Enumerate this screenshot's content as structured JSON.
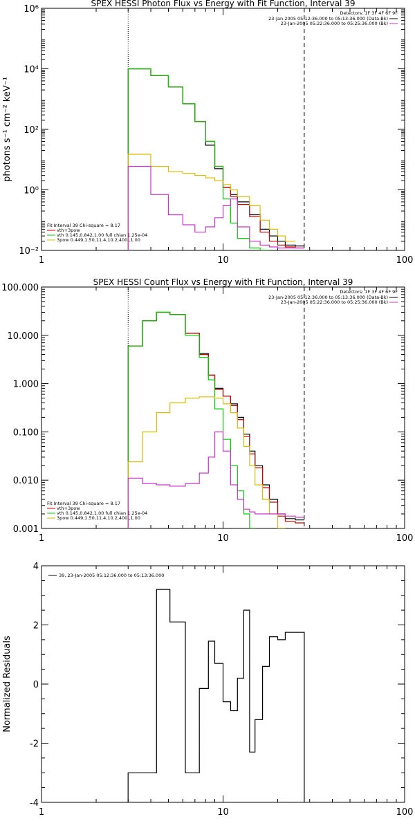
{
  "colors": {
    "data": "#000000",
    "background": "#cc33cc",
    "total": "#cc0000",
    "vth": "#00cc00",
    "bpow": "#ddbb00"
  },
  "chart_data": [
    {
      "type": "line",
      "step": true,
      "title": "SPEX HESSI Photon Flux vs Energy with Fit Function, Interval 39",
      "xlabel": "",
      "ylabel": "photons s⁻¹ cm⁻² keV⁻¹",
      "xscale": "log",
      "yscale": "log",
      "xlim": [
        1,
        100
      ],
      "ylim": [
        0.01,
        1000000
      ],
      "xticks": [
        1,
        10,
        100
      ],
      "xtick_labels": [
        "1",
        "10",
        "100"
      ],
      "yticks": [
        0.01,
        1,
        100,
        10000,
        1000000
      ],
      "ytick_labels": [
        "10⁻²",
        "10⁰",
        "10²",
        "10⁴",
        "10⁶"
      ],
      "vlines": [
        {
          "x": 3,
          "style": "dotted"
        },
        {
          "x": 28,
          "style": "dashed"
        }
      ],
      "header": {
        "detectors": "Detectors: 1F 3F 4F 6F 9F",
        "entries": [
          {
            "text": "23-Jan-2005 05:12:36.000 to 05:13:36.000 (Data-Bk)",
            "color": "#000000"
          },
          {
            "text": "23-Jan-2005 05:22:36.000 to 05:25:36.000 (Bk)",
            "color": "#cc33cc"
          }
        ]
      },
      "fit_legend": {
        "heading": "Fit Interval 39   Chi-square = 8.17",
        "entries": [
          {
            "text": "vth+3pow",
            "color": "#cc0000"
          },
          {
            "text": "vth 0.145,0.842,1.00  full chian 1.25e-04",
            "color": "#00cc00"
          },
          {
            "text": "3pow 0.449,1.50,11.4,10.2,400.,1.00",
            "color": "#ddbb00"
          }
        ]
      },
      "edges": [
        3.0,
        4.0,
        5.0,
        6.0,
        7.0,
        8.0,
        9.0,
        10.0,
        11.0,
        12.0,
        14.0,
        16.0,
        18.0,
        20.0,
        22.0,
        25.0,
        28.0
      ],
      "series": [
        {
          "color": "#000000",
          "values": [
            10000,
            6000,
            2500,
            700,
            180,
            30,
            5,
            1.2,
            0.7,
            0.4,
            0.15,
            0.05,
            0.03,
            0.02,
            0.015,
            0.014
          ]
        },
        {
          "color": "#cc0000",
          "values": [
            10000,
            6000,
            2500,
            700,
            180,
            40,
            6,
            1.2,
            0.6,
            0.33,
            0.13,
            0.04,
            0.02,
            0.015,
            0.013,
            0.012
          ]
        },
        {
          "color": "#00cc00",
          "values": [
            10000,
            6000,
            2500,
            700,
            180,
            40,
            6,
            0.5,
            0.08,
            0.025,
            0.012,
            0.01
          ]
        },
        {
          "color": "#ddbb00",
          "values": [
            15,
            6,
            4,
            3.5,
            3,
            2.5,
            2,
            1.5,
            1.0,
            0.6,
            0.3,
            0.1,
            0.05,
            0.03,
            0.02
          ]
        },
        {
          "color": "#cc33cc",
          "values": [
            6,
            0.7,
            0.15,
            0.07,
            0.04,
            0.06,
            0.12,
            0.3,
            0.5,
            0.06,
            0.02,
            0.015,
            0.013,
            0.012,
            0.012,
            0.012
          ]
        }
      ]
    },
    {
      "type": "line",
      "step": true,
      "title": "SPEX HESSI Count Flux vs Energy with Fit Function, Interval 39",
      "xlabel": "",
      "ylabel": "",
      "xscale": "log",
      "yscale": "log",
      "xlim": [
        1,
        100
      ],
      "ylim": [
        0.001,
        100
      ],
      "xticks": [
        1,
        10,
        100
      ],
      "xtick_labels": [
        "1",
        "10",
        "100"
      ],
      "yticks": [
        0.001,
        0.01,
        0.1,
        1,
        10,
        100
      ],
      "ytick_labels": [
        "0.001",
        "0.010",
        "0.100",
        "1.000",
        "10.000",
        "100.000"
      ],
      "vlines": [
        {
          "x": 3,
          "style": "dotted"
        },
        {
          "x": 28,
          "style": "dashed"
        }
      ],
      "header": {
        "detectors": "Detectors: 1F 3F 4F 6F 9F",
        "entries": [
          {
            "text": "23-Jan-2005 05:12:36.000 to 05:13:36.000 (Data-Bk)",
            "color": "#000000"
          },
          {
            "text": "23-Jan-2005 05:22:36.000 to 05:25:36.000 (Bk)",
            "color": "#cc33cc"
          }
        ]
      },
      "fit_legend": {
        "heading": "Fit Interval 39   Chi-square = 8.17",
        "entries": [
          {
            "text": "vth+3pow",
            "color": "#cc0000"
          },
          {
            "text": "vth 0.145,0.842,1.00  full chian 1.25e-04",
            "color": "#00cc00"
          },
          {
            "text": "3pow 0.449,1.50,11.4,10.2,400.,1.00",
            "color": "#ddbb00"
          }
        ]
      },
      "edges": [
        3.0,
        3.6,
        4.3,
        5.1,
        6.2,
        7.4,
        8.3,
        9.0,
        10.0,
        11.0,
        12.0,
        13.0,
        14.0,
        15.0,
        16.5,
        18.0,
        20.0,
        22.0,
        25.0,
        28.0
      ],
      "series": [
        {
          "color": "#000000",
          "values": [
            6,
            20,
            30,
            27,
            11,
            4.2,
            1.5,
            0.8,
            0.55,
            0.38,
            0.2,
            0.09,
            0.04,
            0.02,
            0.008,
            0.004,
            0.002,
            0.0016,
            0.0015
          ]
        },
        {
          "color": "#cc0000",
          "values": [
            6,
            20,
            30,
            27,
            11,
            4.0,
            1.5,
            0.75,
            0.55,
            0.35,
            0.18,
            0.08,
            0.035,
            0.018,
            0.007,
            0.0035,
            0.0018,
            0.0014,
            0.0013
          ]
        },
        {
          "color": "#00cc00",
          "values": [
            6,
            20,
            30,
            27,
            10,
            3.5,
            1.2,
            0.3,
            0.07,
            0.02,
            0.006,
            0.002,
            0.001
          ]
        },
        {
          "color": "#ddbb00",
          "values": [
            0.024,
            0.1,
            0.25,
            0.4,
            0.5,
            0.53,
            0.53,
            0.5,
            0.38,
            0.25,
            0.12,
            0.05,
            0.02,
            0.008,
            0.004,
            0.002,
            0.001
          ]
        },
        {
          "color": "#cc33cc",
          "values": [
            0.011,
            0.0085,
            0.008,
            0.0075,
            0.0085,
            0.014,
            0.03,
            0.1,
            0.04,
            0.008,
            0.004,
            0.0025,
            0.0022,
            0.002,
            0.002,
            0.002,
            0.002,
            0.0018,
            0.0017
          ]
        }
      ]
    },
    {
      "type": "line",
      "step": true,
      "title": "",
      "xlabel": "",
      "ylabel": "Normalized Residuals",
      "xscale": "log",
      "yscale": "linear",
      "xlim": [
        1,
        100
      ],
      "ylim": [
        -4,
        4
      ],
      "xticks": [
        1,
        10,
        100
      ],
      "xtick_labels": [
        "1",
        "10",
        "100"
      ],
      "yticks": [
        -4,
        -2,
        0,
        2,
        4
      ],
      "ytick_labels": [
        "-4",
        "-2",
        "0",
        "2",
        "4"
      ],
      "legend": "39, 23-Jan-2005 05:12:36.000 to 05:13:36.000",
      "edges": [
        3.0,
        3.6,
        4.3,
        5.1,
        6.2,
        7.4,
        8.3,
        9.0,
        10.0,
        11.0,
        12.0,
        13.0,
        14.0,
        15.0,
        16.5,
        18.0,
        20.0,
        22.0,
        25.0,
        28.0
      ],
      "series": [
        {
          "color": "#000000",
          "values": [
            -3.0,
            -3.0,
            3.2,
            2.1,
            -3.0,
            -0.15,
            1.45,
            0.7,
            -0.6,
            -0.9,
            0.2,
            2.5,
            -2.3,
            -1.2,
            0.6,
            1.6,
            1.5,
            1.75,
            1.75
          ]
        }
      ]
    }
  ]
}
